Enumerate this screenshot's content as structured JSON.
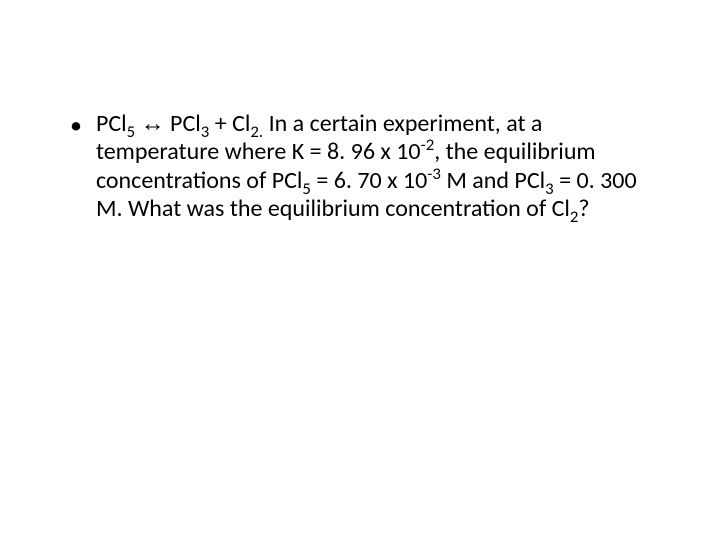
{
  "background_color": "#ffffff",
  "text_color": "#000000",
  "font_family": "Calibri",
  "font_size_pt": 24,
  "bullet": {
    "glyph": "•",
    "equation": {
      "reactant": "PCl",
      "reactant_sub": "5",
      "arrow": "↔",
      "product1": "PCl",
      "product1_sub": "3",
      "plus": "+",
      "product2": "Cl",
      "product2_sub": "2",
      "period_sub": "."
    },
    "text_parts": {
      "p1": " In a certain experiment, at a temperature where K = 8. 96 x 10",
      "sup1": "-2",
      "p2": ", the equilibrium concentrations of PCl",
      "sub_pcl5": "5",
      "p3": " = 6. 70 x 10",
      "sup2": "-3",
      "p4": " M and PCl",
      "sub_pcl3": "3",
      "p5": " = 0. 300 M. What was the equilibrium concentration of Cl",
      "sub_cl2": "2",
      "p6": "?"
    }
  }
}
